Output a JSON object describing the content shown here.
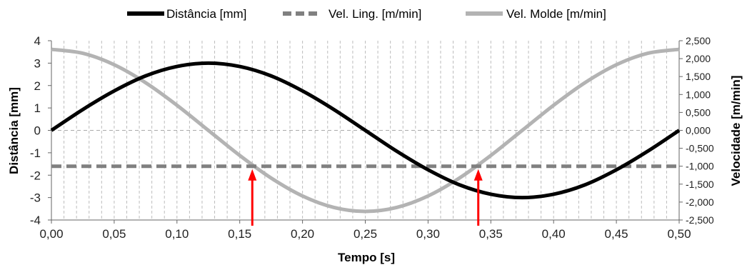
{
  "chart_data": {
    "type": "line",
    "xlabel": "Tempo [s]",
    "ylabel_left": "Distância [mm]",
    "ylabel_right": "Velocidade [m/min]",
    "xlim": [
      0,
      0.5
    ],
    "ylim_left": [
      -4,
      4
    ],
    "ylim_right": [
      -2.5,
      2.5
    ],
    "x_ticks": [
      "0,00",
      "0,05",
      "0,10",
      "0,15",
      "0,20",
      "0,25",
      "0,30",
      "0,35",
      "0,40",
      "0,45",
      "0,50"
    ],
    "y_left_ticks": [
      "4",
      "3",
      "2",
      "1",
      "0",
      "-1",
      "-2",
      "-3",
      "-4"
    ],
    "y_right_ticks": [
      "2,500",
      "2,000",
      "1,500",
      "1,000",
      "0,500",
      "0,000",
      "-0,500",
      "-1,000",
      "-1,500",
      "-2,000",
      "-2,500"
    ],
    "grid": "vertical dashed gridlines every 0.01 s; dashed zero line",
    "legend_position": "top",
    "series": [
      {
        "name": "Distância [mm]",
        "axis": "left",
        "color": "#000000",
        "style": "solid",
        "x": [
          0,
          0.025,
          0.05,
          0.075,
          0.1,
          0.125,
          0.15,
          0.175,
          0.2,
          0.225,
          0.25,
          0.275,
          0.3,
          0.325,
          0.35,
          0.375,
          0.4,
          0.425,
          0.45,
          0.475,
          0.5
        ],
        "values": [
          0,
          0.93,
          1.76,
          2.43,
          2.85,
          3.0,
          2.85,
          2.43,
          1.76,
          0.93,
          0,
          -0.93,
          -1.76,
          -2.43,
          -2.85,
          -3.0,
          -2.85,
          -2.43,
          -1.76,
          -0.93,
          0
        ]
      },
      {
        "name": "Vel. Ling. [m/min]",
        "axis": "right",
        "color": "#808080",
        "style": "dashed",
        "x": [
          0,
          0.5
        ],
        "values": [
          -1.0,
          -1.0
        ]
      },
      {
        "name": "Vel. Molde [m/min]",
        "axis": "right",
        "color": "#b3b3b3",
        "style": "solid",
        "x": [
          0,
          0.025,
          0.05,
          0.075,
          0.1,
          0.125,
          0.15,
          0.175,
          0.2,
          0.225,
          0.25,
          0.275,
          0.3,
          0.325,
          0.35,
          0.375,
          0.4,
          0.425,
          0.45,
          0.475,
          0.5
        ],
        "values": [
          2.26,
          2.15,
          1.83,
          1.33,
          0.7,
          0,
          -0.7,
          -1.33,
          -1.83,
          -2.15,
          -2.26,
          -2.15,
          -1.83,
          -1.33,
          -0.7,
          0,
          0.7,
          1.33,
          1.83,
          2.15,
          2.26
        ]
      }
    ],
    "annotations": [
      {
        "type": "arrow",
        "x": 0.16,
        "color": "#ff0000"
      },
      {
        "type": "arrow",
        "x": 0.34,
        "color": "#ff0000"
      }
    ]
  }
}
